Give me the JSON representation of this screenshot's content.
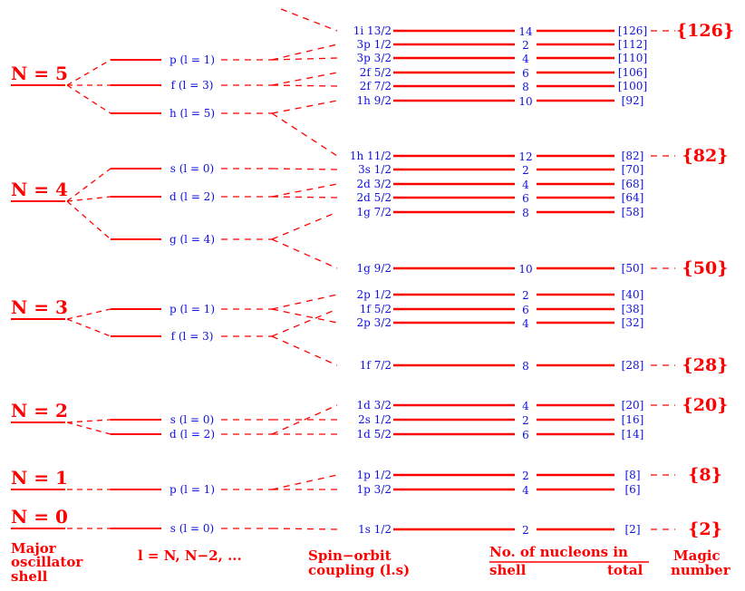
{
  "colors": {
    "level": "#ff0000",
    "label": "#1010e0",
    "magic": "#ff0000"
  },
  "major_shells": [
    "N = 5",
    "N = 4",
    "N = 3",
    "N = 2",
    "N = 1",
    "N = 0"
  ],
  "orbital_levels": [
    {
      "label": "p (l = 1)",
      "shell": 0
    },
    {
      "label": "f (l = 3)",
      "shell": 0
    },
    {
      "label": "h (l = 5)",
      "shell": 0
    },
    {
      "label": "s (l = 0)",
      "shell": 1
    },
    {
      "label": "d (l = 2)",
      "shell": 1
    },
    {
      "label": "g (l = 4)",
      "shell": 1
    },
    {
      "label": "p (l = 1)",
      "shell": 2
    },
    {
      "label": "f (l = 3)",
      "shell": 2
    },
    {
      "label": "s (l = 0)",
      "shell": 3
    },
    {
      "label": "d (l = 2)",
      "shell": 3
    },
    {
      "label": "p (l = 1)",
      "shell": 4
    },
    {
      "label": "s (l = 0)",
      "shell": 5
    }
  ],
  "spin_orbit_levels": [
    {
      "label": "1i 13/2",
      "parent": null,
      "shell": "14",
      "total": "[126]",
      "magic": "{126}"
    },
    {
      "label": "3p 1/2",
      "parent": 0,
      "shell": "2",
      "total": "[112]"
    },
    {
      "label": "3p 3/2",
      "parent": 0,
      "shell": "4",
      "total": "[110]"
    },
    {
      "label": "2f 5/2",
      "parent": 1,
      "shell": "6",
      "total": "[106]"
    },
    {
      "label": "2f 7/2",
      "parent": 1,
      "shell": "8",
      "total": "[100]"
    },
    {
      "label": "1h 9/2",
      "parent": 2,
      "shell": "10",
      "total": "[92]"
    },
    {
      "label": "1h 11/2",
      "parent": 2,
      "shell": "12",
      "total": "[82]",
      "magic": "{82}"
    },
    {
      "label": "3s 1/2",
      "parent": 3,
      "shell": "2",
      "total": "[70]"
    },
    {
      "label": "2d 3/2",
      "parent": 4,
      "shell": "4",
      "total": "[68]"
    },
    {
      "label": "2d 5/2",
      "parent": 4,
      "shell": "6",
      "total": "[64]"
    },
    {
      "label": "1g 7/2",
      "parent": 5,
      "shell": "8",
      "total": "[58]"
    },
    {
      "label": "1g 9/2",
      "parent": 5,
      "shell": "10",
      "total": "[50]",
      "magic": "{50}"
    },
    {
      "label": "2p 1/2",
      "parent": 6,
      "shell": "2",
      "total": "[40]"
    },
    {
      "label": "1f 5/2",
      "parent": 7,
      "shell": "6",
      "total": "[38]"
    },
    {
      "label": "2p 3/2",
      "parent": 6,
      "shell": "4",
      "total": "[32]"
    },
    {
      "label": "1f 7/2",
      "parent": 7,
      "shell": "8",
      "total": "[28]",
      "magic": "{28}"
    },
    {
      "label": "1d 3/2",
      "parent": 9,
      "shell": "4",
      "total": "[20]",
      "magic": "{20}"
    },
    {
      "label": "2s 1/2",
      "parent": 8,
      "shell": "2",
      "total": "[16]"
    },
    {
      "label": "1d 5/2",
      "parent": 9,
      "shell": "6",
      "total": "[14]"
    },
    {
      "label": "1p 1/2",
      "parent": 10,
      "shell": "2",
      "total": "[8]",
      "magic": "{8}"
    },
    {
      "label": "1p 3/2",
      "parent": 10,
      "shell": "4",
      "total": "[6]"
    },
    {
      "label": "1s 1/2",
      "parent": 11,
      "shell": "2",
      "total": "[2]",
      "magic": "{2}"
    }
  ],
  "captions": {
    "major": [
      "Major",
      "oscillator",
      "shell"
    ],
    "orbital": "l = N, N−2, ...",
    "spin": [
      "Spin−orbit",
      "coupling (l.s)"
    ],
    "nucleons": "No. of nucleons in",
    "shell": "shell",
    "total": "total",
    "magic": [
      "Magic",
      "number"
    ]
  }
}
